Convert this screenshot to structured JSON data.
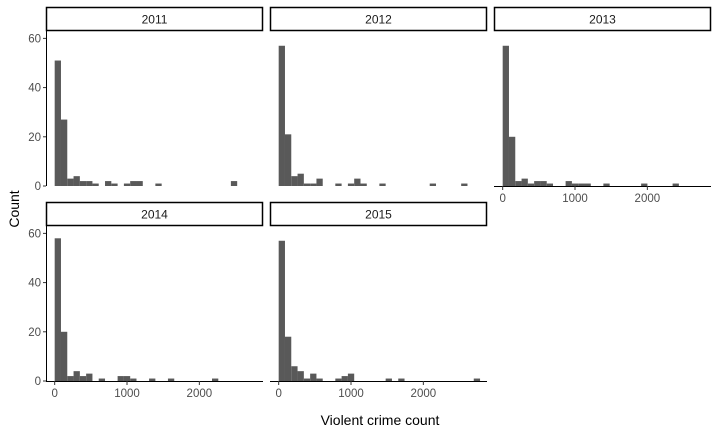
{
  "chart_data": {
    "type": "bar",
    "subtype": "histogram-faceted",
    "xlabel": "Violent crime count",
    "ylabel": "Count",
    "bin_width": 87,
    "x_ticks": [
      0,
      1000,
      2000
    ],
    "y_ticks": [
      0,
      20,
      40,
      60
    ],
    "xlim": [
      -120,
      2880
    ],
    "ylim": [
      0,
      63
    ],
    "bar_color": "#595959",
    "facets": [
      {
        "label": "2011",
        "bins": [
          {
            "x": 0,
            "count": 51
          },
          {
            "x": 87,
            "count": 27
          },
          {
            "x": 174,
            "count": 3
          },
          {
            "x": 261,
            "count": 4
          },
          {
            "x": 348,
            "count": 2
          },
          {
            "x": 435,
            "count": 2
          },
          {
            "x": 522,
            "count": 1
          },
          {
            "x": 696,
            "count": 2
          },
          {
            "x": 783,
            "count": 1
          },
          {
            "x": 957,
            "count": 1
          },
          {
            "x": 1044,
            "count": 2
          },
          {
            "x": 1131,
            "count": 2
          },
          {
            "x": 1392,
            "count": 1
          },
          {
            "x": 2436,
            "count": 2
          }
        ]
      },
      {
        "label": "2012",
        "bins": [
          {
            "x": 0,
            "count": 57
          },
          {
            "x": 87,
            "count": 21
          },
          {
            "x": 174,
            "count": 4
          },
          {
            "x": 261,
            "count": 5
          },
          {
            "x": 348,
            "count": 1
          },
          {
            "x": 435,
            "count": 1
          },
          {
            "x": 522,
            "count": 3
          },
          {
            "x": 783,
            "count": 1
          },
          {
            "x": 957,
            "count": 1
          },
          {
            "x": 1044,
            "count": 3
          },
          {
            "x": 1131,
            "count": 1
          },
          {
            "x": 1392,
            "count": 1
          },
          {
            "x": 2088,
            "count": 1
          },
          {
            "x": 2523,
            "count": 1
          }
        ]
      },
      {
        "label": "2013",
        "bins": [
          {
            "x": 0,
            "count": 57
          },
          {
            "x": 87,
            "count": 20
          },
          {
            "x": 174,
            "count": 2
          },
          {
            "x": 261,
            "count": 3
          },
          {
            "x": 348,
            "count": 1
          },
          {
            "x": 435,
            "count": 2
          },
          {
            "x": 522,
            "count": 2
          },
          {
            "x": 609,
            "count": 1
          },
          {
            "x": 870,
            "count": 2
          },
          {
            "x": 957,
            "count": 1
          },
          {
            "x": 1044,
            "count": 1
          },
          {
            "x": 1131,
            "count": 1
          },
          {
            "x": 1392,
            "count": 1
          },
          {
            "x": 1914,
            "count": 1
          },
          {
            "x": 2349,
            "count": 1
          }
        ]
      },
      {
        "label": "2014",
        "bins": [
          {
            "x": 0,
            "count": 58
          },
          {
            "x": 87,
            "count": 20
          },
          {
            "x": 174,
            "count": 2
          },
          {
            "x": 261,
            "count": 4
          },
          {
            "x": 348,
            "count": 2
          },
          {
            "x": 435,
            "count": 3
          },
          {
            "x": 609,
            "count": 1
          },
          {
            "x": 870,
            "count": 2
          },
          {
            "x": 957,
            "count": 2
          },
          {
            "x": 1044,
            "count": 1
          },
          {
            "x": 1305,
            "count": 1
          },
          {
            "x": 1566,
            "count": 1
          },
          {
            "x": 2175,
            "count": 1
          }
        ]
      },
      {
        "label": "2015",
        "bins": [
          {
            "x": 0,
            "count": 57
          },
          {
            "x": 87,
            "count": 18
          },
          {
            "x": 174,
            "count": 6
          },
          {
            "x": 261,
            "count": 4
          },
          {
            "x": 348,
            "count": 1
          },
          {
            "x": 435,
            "count": 3
          },
          {
            "x": 522,
            "count": 1
          },
          {
            "x": 783,
            "count": 1
          },
          {
            "x": 870,
            "count": 2
          },
          {
            "x": 957,
            "count": 3
          },
          {
            "x": 1479,
            "count": 1
          },
          {
            "x": 1653,
            "count": 1
          },
          {
            "x": 2697,
            "count": 1
          }
        ]
      }
    ]
  }
}
